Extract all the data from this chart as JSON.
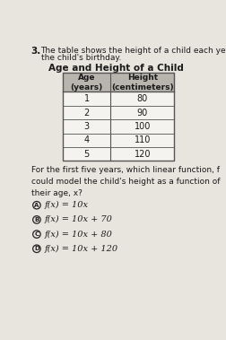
{
  "question_number": "3.",
  "intro_line1": "The table shows the height of a child each ye",
  "intro_line2": "the child's birthday.",
  "title": "Age and Height of a Child",
  "col_headers": [
    "Age\n(years)",
    "Height\n(centimeters)"
  ],
  "table_data": [
    [
      1,
      80
    ],
    [
      2,
      90
    ],
    [
      3,
      100
    ],
    [
      4,
      110
    ],
    [
      5,
      120
    ]
  ],
  "question_text": "For the first five years, which linear function, f\ncould model the child's height as a function of\ntheir age, x?",
  "choices": [
    [
      "A",
      "f(x) = 10x"
    ],
    [
      "B",
      "f(x) = 10x + 70"
    ],
    [
      "C",
      "f(x) = 10x + 80"
    ],
    [
      "D",
      "f(x) = 10x + 120"
    ]
  ],
  "bg_color": "#e8e4de",
  "table_header_bg": "#b8b4ae",
  "table_row_bg": "#f5f3f0",
  "table_border_color": "#555555",
  "text_color": "#1a1a1a",
  "circle_color": "#222222"
}
